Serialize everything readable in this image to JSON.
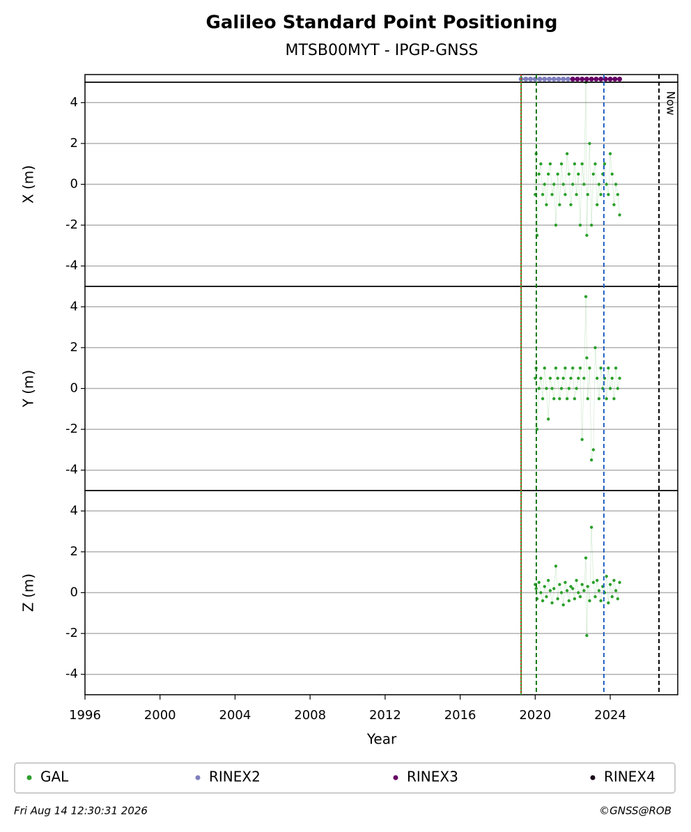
{
  "chart_data": {
    "type": "scatter",
    "title": "Galileo Standard Point Positioning",
    "subtitle": "MTSB00MYT - IPGP-GNSS",
    "xlabel": "Year",
    "xlim": [
      1996,
      2027.6
    ],
    "xticks": [
      1996,
      2000,
      2004,
      2008,
      2012,
      2016,
      2020,
      2024
    ],
    "grid": true,
    "panels": [
      {
        "ylabel": "X (m)",
        "ylim": [
          -5,
          5
        ],
        "yticks": [
          -4,
          -2,
          0,
          2,
          4
        ]
      },
      {
        "ylabel": "Y (m)",
        "ylim": [
          -5,
          5
        ],
        "yticks": [
          -4,
          -2,
          0,
          2,
          4
        ]
      },
      {
        "ylabel": "Z (m)",
        "ylim": [
          -5,
          5
        ],
        "yticks": [
          -4,
          -2,
          0,
          2,
          4
        ]
      }
    ],
    "series": [
      {
        "name": "GAL",
        "color": "#2ca02c",
        "x": [
          2020.0,
          2020.05,
          2020.1,
          2020.2,
          2020.3,
          2020.4,
          2020.5,
          2020.6,
          2020.7,
          2020.8,
          2020.9,
          2021.0,
          2021.1,
          2021.2,
          2021.3,
          2021.4,
          2021.5,
          2021.6,
          2021.7,
          2021.8,
          2021.9,
          2022.0,
          2022.1,
          2022.2,
          2022.3,
          2022.4,
          2022.5,
          2022.6,
          2022.7,
          2022.75,
          2022.8,
          2022.9,
          2023.0,
          2023.1,
          2023.2,
          2023.3,
          2023.4,
          2023.5,
          2023.6,
          2023.7,
          2023.8,
          2023.9,
          2024.0,
          2024.1,
          2024.2,
          2024.3,
          2024.4,
          2024.5
        ],
        "values": [
          [
            -0.5,
            1.5,
            -2.5,
            0.5,
            1,
            -0.5,
            0,
            -1,
            0.5,
            1,
            -0.5,
            0,
            -2,
            0.5,
            -1,
            1,
            0,
            -0.5,
            1.5,
            0.5,
            -1,
            0,
            1,
            -0.5,
            0.5,
            -2,
            1,
            0,
            5,
            -2.5,
            -0.5,
            2,
            -2,
            0.5,
            1,
            -1,
            0,
            -0.5,
            0.5,
            1,
            0,
            -0.5,
            1.5,
            0.5,
            -1,
            0,
            -0.5,
            -1.5
          ],
          [
            0.5,
            1,
            -2,
            0,
            0.5,
            -0.5,
            1,
            0,
            -1.5,
            0.5,
            0,
            -0.5,
            1,
            0.5,
            -0.5,
            0,
            0.5,
            1,
            -0.5,
            0,
            0.5,
            1,
            -0.5,
            0,
            0.5,
            1,
            -2.5,
            0.5,
            4.5,
            1.5,
            -0.5,
            1,
            -3.5,
            -3,
            2,
            0.5,
            -0.5,
            1,
            0,
            0.5,
            -0.5,
            1,
            0,
            0.5,
            -0.5,
            1,
            0,
            0.5
          ],
          [
            0.4,
            0.2,
            -0.3,
            0.5,
            0,
            -0.4,
            0.3,
            -0.2,
            0.6,
            0.1,
            -0.5,
            0.2,
            1.3,
            -0.3,
            0.4,
            0,
            -0.6,
            0.5,
            0.1,
            -0.4,
            0.3,
            0.2,
            -0.3,
            0.6,
            0,
            -0.2,
            0.4,
            0.1,
            1.7,
            -2.1,
            0.3,
            -0.4,
            3.2,
            0.5,
            -0.2,
            0.6,
            0.1,
            -0.4,
            0.3,
            0,
            0.8,
            -0.5,
            0.4,
            -0.2,
            0.6,
            0.1,
            -0.3,
            0.5
          ]
        ]
      },
      {
        "name": "RINEX2",
        "color": "#7f7fbf",
        "x": [
          2019.25,
          2019.5,
          2019.75,
          2020.0,
          2020.25,
          2020.5,
          2020.75,
          2021.0,
          2021.25,
          2021.5,
          2021.75,
          2022.0
        ]
      },
      {
        "name": "RINEX3",
        "color": "#660066",
        "x": [
          2022.0,
          2022.25,
          2022.5,
          2022.75,
          2023.0,
          2023.25,
          2023.5,
          2023.75,
          2024.0,
          2024.25,
          2024.5
        ]
      },
      {
        "name": "RINEX4",
        "color": "#1a0a1a"
      }
    ],
    "vlines": [
      {
        "x": 2019.25,
        "color": "#2ca02c",
        "style": "solid"
      },
      {
        "x": 2019.25,
        "color": "#d62728",
        "style": "dotted"
      },
      {
        "x": 2020.06,
        "color": "#117711",
        "style": "dashed"
      },
      {
        "x": 2023.66,
        "color": "#1f5fbf",
        "style": "dashed"
      },
      {
        "x": 2026.6,
        "color": "#000000",
        "style": "dashed"
      }
    ],
    "now_label": "Now",
    "footer_left": "Fri Aug 14 12:30:31 2026",
    "footer_right": "©GNSS@ROB"
  }
}
